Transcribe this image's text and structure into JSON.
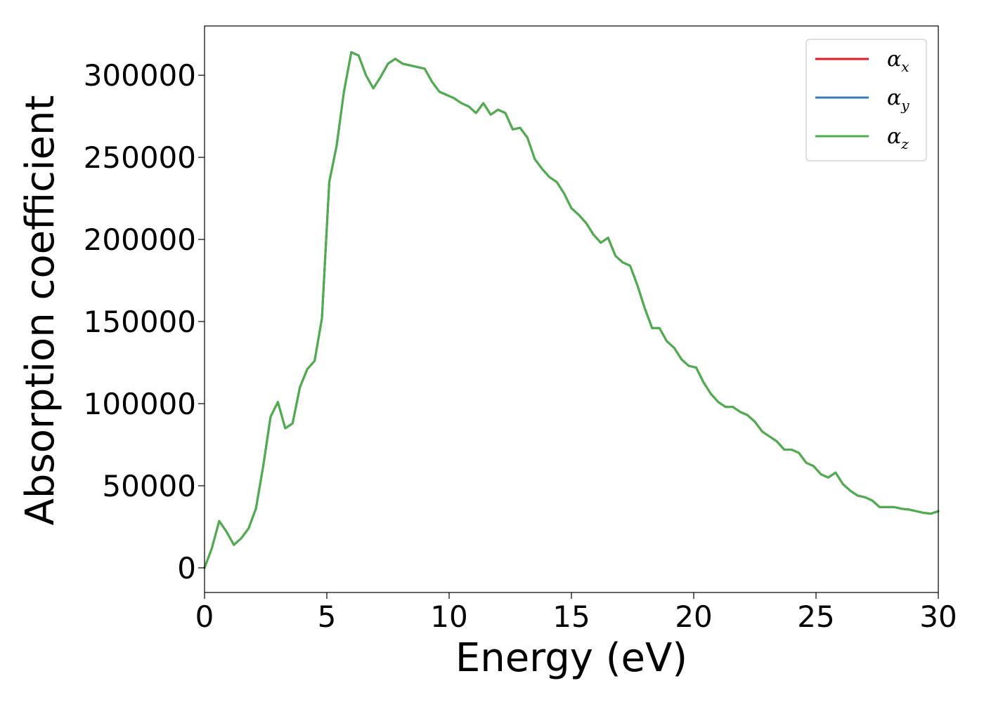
{
  "chart_data": {
    "type": "line",
    "xlabel": "Energy (eV)",
    "ylabel": "Absorption coefficient",
    "xlim": [
      0,
      30
    ],
    "ylim": [
      -15000,
      330000
    ],
    "xticks": [
      0,
      5,
      10,
      15,
      20,
      25,
      30
    ],
    "yticks": [
      0,
      50000,
      100000,
      150000,
      200000,
      250000,
      300000
    ],
    "xtick_labels": [
      "0",
      "5",
      "10",
      "15",
      "20",
      "25",
      "30"
    ],
    "ytick_labels": [
      "0",
      "50000",
      "100000",
      "150000",
      "200000",
      "250000",
      "300000"
    ],
    "grid": false,
    "legend_position": "top-right",
    "x": [
      0.0,
      0.3,
      0.6,
      0.9,
      1.2,
      1.5,
      1.8,
      2.1,
      2.4,
      2.7,
      3.0,
      3.3,
      3.6,
      3.9,
      4.2,
      4.5,
      4.8,
      5.1,
      5.4,
      5.7,
      6.0,
      6.3,
      6.6,
      6.9,
      7.2,
      7.5,
      7.8,
      8.1,
      8.4,
      8.7,
      9.0,
      9.3,
      9.6,
      9.9,
      10.2,
      10.5,
      10.8,
      11.1,
      11.4,
      11.7,
      12.0,
      12.3,
      12.6,
      12.9,
      13.2,
      13.5,
      13.8,
      14.1,
      14.4,
      14.7,
      15.0,
      15.3,
      15.6,
      15.9,
      16.2,
      16.5,
      16.8,
      17.1,
      17.4,
      17.7,
      18.0,
      18.3,
      18.6,
      18.9,
      19.2,
      19.5,
      19.8,
      20.1,
      20.4,
      20.7,
      21.0,
      21.3,
      21.6,
      21.9,
      22.2,
      22.5,
      22.8,
      23.1,
      23.4,
      23.7,
      24.0,
      24.3,
      24.6,
      24.9,
      25.2,
      25.5,
      25.8,
      26.1,
      26.4,
      26.7,
      27.0,
      27.3,
      27.6,
      27.9,
      28.2,
      28.5,
      28.8,
      29.1,
      29.4,
      29.7,
      30.0
    ],
    "series": [
      {
        "name": "α_x",
        "color": "#e41a1c",
        "values": [
          0,
          12000,
          28500,
          22000,
          14000,
          18000,
          24000,
          36000,
          62000,
          92000,
          101000,
          85000,
          88000,
          110000,
          121000,
          126000,
          152000,
          235000,
          257000,
          290000,
          314000,
          312000,
          300000,
          292000,
          299000,
          307000,
          310000,
          307000,
          306000,
          305000,
          304000,
          296000,
          290000,
          288000,
          286000,
          283000,
          281000,
          277000,
          283000,
          276000,
          279000,
          277000,
          267000,
          268000,
          262000,
          249000,
          243000,
          238000,
          235000,
          228000,
          219000,
          215000,
          210000,
          203000,
          198000,
          201000,
          190000,
          186000,
          184000,
          172000,
          158000,
          146000,
          146000,
          138000,
          134000,
          127000,
          123000,
          122000,
          113000,
          106000,
          101000,
          98000,
          98000,
          95000,
          93000,
          89000,
          83000,
          80000,
          77000,
          72000,
          72000,
          70000,
          64000,
          62000,
          57000,
          55000,
          58000,
          51000,
          47000,
          44000,
          43000,
          41000,
          37000,
          37000,
          37000,
          36000,
          35500,
          34500,
          33500,
          33000,
          34500
        ]
      },
      {
        "name": "α_y",
        "color": "#377eb8",
        "values": [
          0,
          12000,
          28500,
          22000,
          14000,
          18000,
          24000,
          36000,
          62000,
          92000,
          101000,
          85000,
          88000,
          110000,
          121000,
          126000,
          152000,
          235000,
          257000,
          290000,
          314000,
          312000,
          300000,
          292000,
          299000,
          307000,
          310000,
          307000,
          306000,
          305000,
          304000,
          296000,
          290000,
          288000,
          286000,
          283000,
          281000,
          277000,
          283000,
          276000,
          279000,
          277000,
          267000,
          268000,
          262000,
          249000,
          243000,
          238000,
          235000,
          228000,
          219000,
          215000,
          210000,
          203000,
          198000,
          201000,
          190000,
          186000,
          184000,
          172000,
          158000,
          146000,
          146000,
          138000,
          134000,
          127000,
          123000,
          122000,
          113000,
          106000,
          101000,
          98000,
          98000,
          95000,
          93000,
          89000,
          83000,
          80000,
          77000,
          72000,
          72000,
          70000,
          64000,
          62000,
          57000,
          55000,
          58000,
          51000,
          47000,
          44000,
          43000,
          41000,
          37000,
          37000,
          37000,
          36000,
          35500,
          34500,
          33500,
          33000,
          34500
        ]
      },
      {
        "name": "α_z",
        "color": "#4daf4a",
        "values": [
          0,
          12000,
          28500,
          22000,
          14000,
          18000,
          24000,
          36000,
          62000,
          92000,
          101000,
          85000,
          88000,
          110000,
          121000,
          126000,
          152000,
          235000,
          257000,
          290000,
          314000,
          312000,
          300000,
          292000,
          299000,
          307000,
          310000,
          307000,
          306000,
          305000,
          304000,
          296000,
          290000,
          288000,
          286000,
          283000,
          281000,
          277000,
          283000,
          276000,
          279000,
          277000,
          267000,
          268000,
          262000,
          249000,
          243000,
          238000,
          235000,
          228000,
          219000,
          215000,
          210000,
          203000,
          198000,
          201000,
          190000,
          186000,
          184000,
          172000,
          158000,
          146000,
          146000,
          138000,
          134000,
          127000,
          123000,
          122000,
          113000,
          106000,
          101000,
          98000,
          98000,
          95000,
          93000,
          89000,
          83000,
          80000,
          77000,
          72000,
          72000,
          70000,
          64000,
          62000,
          57000,
          55000,
          58000,
          51000,
          47000,
          44000,
          43000,
          41000,
          37000,
          37000,
          37000,
          36000,
          35500,
          34500,
          33500,
          33000,
          34500
        ]
      }
    ],
    "legend": [
      {
        "symbol": "α",
        "subscript": "x",
        "color": "#e41a1c"
      },
      {
        "symbol": "α",
        "subscript": "y",
        "color": "#377eb8"
      },
      {
        "symbol": "α",
        "subscript": "z",
        "color": "#4daf4a"
      }
    ]
  }
}
